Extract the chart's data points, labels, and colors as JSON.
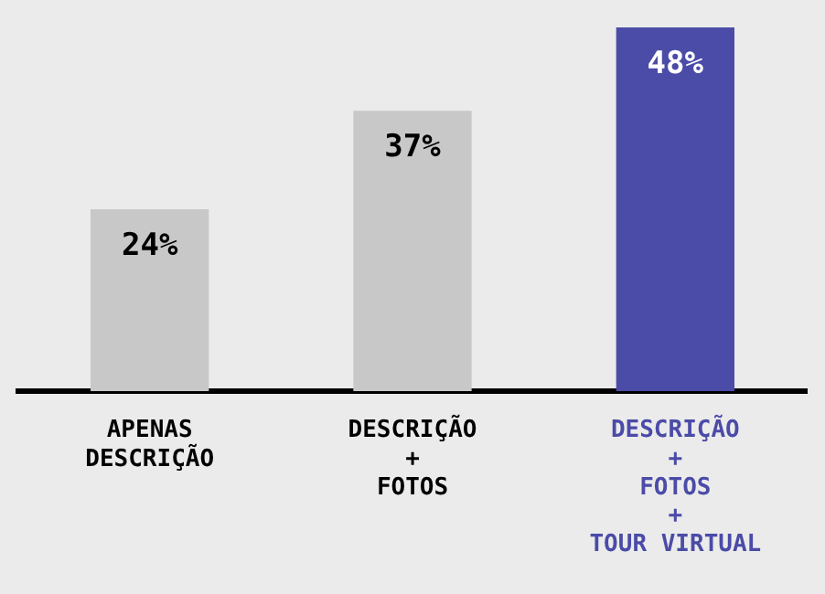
{
  "chart_data": {
    "type": "bar",
    "categories": [
      "APENAS\nDESCRIÇÃO",
      "DESCRIÇÃO\n+\nFOTOS",
      "DESCRIÇÃO\n+\nFOTOS\n+\nTOUR VIRTUAL"
    ],
    "values": [
      24,
      37,
      48
    ],
    "colors": [
      "#c8c8c8",
      "#c8c8c8",
      "#4b4ba8"
    ],
    "value_labels": [
      "24%",
      "37%",
      "48%"
    ],
    "grid": false,
    "legend": false,
    "tick_labels": "x"
  }
}
